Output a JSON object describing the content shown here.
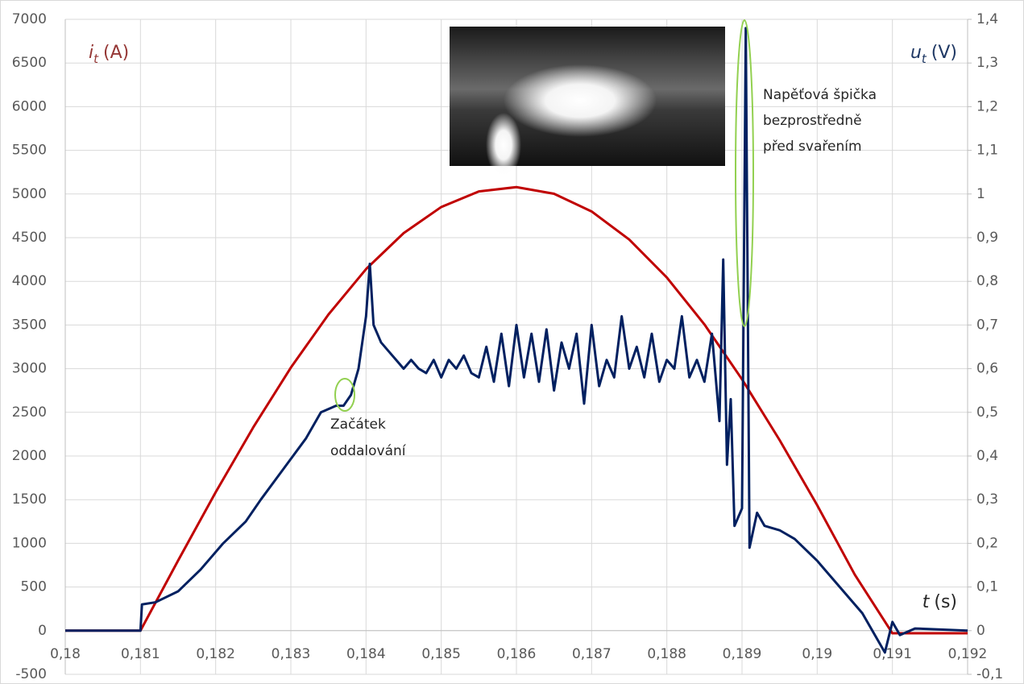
{
  "chart_data": {
    "type": "line",
    "y_label": {
      "symbol": "i",
      "subscript": "t",
      "unit": "(A)"
    },
    "y2_label": {
      "symbol": "u",
      "subscript": "t",
      "unit": "(V)"
    },
    "x_label": {
      "symbol": "t",
      "unit": "(s)"
    },
    "annotations": [
      {
        "lines": [
          "Začátek",
          "oddalování"
        ]
      },
      {
        "lines": [
          "Napěťová špička",
          "bezprostředně",
          "před svařením"
        ]
      }
    ],
    "xlim": [
      0.18,
      0.192
    ],
    "xticks": [
      {
        "value": 0.18,
        "label": "0,18"
      },
      {
        "value": 0.181,
        "label": "0,181"
      },
      {
        "value": 0.182,
        "label": "0,182"
      },
      {
        "value": 0.183,
        "label": "0,183"
      },
      {
        "value": 0.184,
        "label": "0,184"
      },
      {
        "value": 0.185,
        "label": "0,185"
      },
      {
        "value": 0.186,
        "label": "0,186"
      },
      {
        "value": 0.187,
        "label": "0,187"
      },
      {
        "value": 0.188,
        "label": "0,188"
      },
      {
        "value": 0.189,
        "label": "0,189"
      },
      {
        "value": 0.19,
        "label": "0,19"
      },
      {
        "value": 0.191,
        "label": "0,191"
      },
      {
        "value": 0.192,
        "label": "0,192"
      }
    ],
    "ylim": [
      -500,
      7000
    ],
    "yticks": [
      -500,
      0,
      500,
      1000,
      1500,
      2000,
      2500,
      3000,
      3500,
      4000,
      4500,
      5000,
      5500,
      6000,
      6500,
      7000
    ],
    "y2lim": [
      -0.1,
      1.4
    ],
    "y2ticks": [
      {
        "value": -0.1,
        "label": "-0,1"
      },
      0,
      {
        "value": 0.1,
        "label": "0,1"
      },
      {
        "value": 0.2,
        "label": "0,2"
      },
      {
        "value": 0.3,
        "label": "0,3"
      },
      {
        "value": 0.4,
        "label": "0,4"
      },
      {
        "value": 0.5,
        "label": "0,5"
      },
      {
        "value": 0.6,
        "label": "0,6"
      },
      {
        "value": 0.7,
        "label": "0,7"
      },
      {
        "value": 0.8,
        "label": "0,8"
      },
      {
        "value": 0.9,
        "label": "0,9"
      },
      1,
      {
        "value": 1.1,
        "label": "1,1"
      },
      {
        "value": 1.2,
        "label": "1,2"
      },
      {
        "value": 1.3,
        "label": "1,3"
      },
      {
        "value": 1.4,
        "label": "1,4"
      }
    ],
    "grid": true,
    "series": [
      {
        "color": "#c00000",
        "x": [
          0.18,
          0.1805,
          0.181,
          0.1815,
          0.182,
          0.1825,
          0.183,
          0.1835,
          0.184,
          0.1845,
          0.185,
          0.1855,
          0.186,
          0.1865,
          0.187,
          0.1875,
          0.188,
          0.1885,
          0.189,
          0.1895,
          0.19,
          0.1905,
          0.191,
          0.1915,
          0.192
        ],
        "values": [
          0,
          0,
          0,
          802,
          1585,
          2328,
          3012,
          3620,
          4140,
          4552,
          4851,
          5029,
          5079,
          5003,
          4800,
          4479,
          4044,
          3507,
          2878,
          2182,
          1436,
          641,
          -30,
          -30,
          -30
        ]
      },
      {
        "color": "#002060",
        "axis": "y2",
        "x": [
          0.18,
          0.181,
          0.18102,
          0.1812,
          0.1815,
          0.1818,
          0.1821,
          0.1824,
          0.1826,
          0.1829,
          0.1832,
          0.1834,
          0.1836,
          0.1837,
          0.1838,
          0.1839,
          0.184,
          0.18405,
          0.1841,
          0.1842,
          0.1843,
          0.1844,
          0.1845,
          0.1846,
          0.1847,
          0.1848,
          0.1849,
          0.185,
          0.1851,
          0.1852,
          0.1853,
          0.1854,
          0.1855,
          0.1856,
          0.1857,
          0.1858,
          0.1859,
          0.186,
          0.1861,
          0.1862,
          0.1863,
          0.1864,
          0.1865,
          0.1866,
          0.1867,
          0.1868,
          0.1869,
          0.187,
          0.1871,
          0.1872,
          0.1873,
          0.1874,
          0.1875,
          0.1876,
          0.1877,
          0.1878,
          0.1879,
          0.188,
          0.1881,
          0.1882,
          0.1883,
          0.1884,
          0.1885,
          0.1886,
          0.1887,
          0.18875,
          0.1888,
          0.18885,
          0.1889,
          0.189,
          0.18905,
          0.1891,
          0.1892,
          0.1893,
          0.1895,
          0.1897,
          0.19,
          0.1903,
          0.1906,
          0.1909,
          0.191,
          0.1911,
          0.1913,
          0.192
        ],
        "values": [
          0,
          0,
          0.06,
          0.065,
          0.09,
          0.14,
          0.2,
          0.25,
          0.3,
          0.37,
          0.44,
          0.5,
          0.515,
          0.515,
          0.54,
          0.6,
          0.72,
          0.84,
          0.7,
          0.66,
          0.64,
          0.62,
          0.6,
          0.62,
          0.6,
          0.59,
          0.62,
          0.58,
          0.62,
          0.6,
          0.63,
          0.59,
          0.58,
          0.65,
          0.57,
          0.68,
          0.56,
          0.7,
          0.58,
          0.68,
          0.57,
          0.69,
          0.55,
          0.66,
          0.6,
          0.68,
          0.52,
          0.7,
          0.56,
          0.62,
          0.58,
          0.72,
          0.6,
          0.65,
          0.58,
          0.68,
          0.57,
          0.62,
          0.6,
          0.72,
          0.58,
          0.62,
          0.57,
          0.68,
          0.48,
          0.85,
          0.38,
          0.53,
          0.24,
          0.28,
          1.38,
          0.19,
          0.27,
          0.24,
          0.23,
          0.21,
          0.16,
          0.1,
          0.04,
          -0.05,
          0.02,
          -0.01,
          0.005,
          0
        ]
      }
    ]
  }
}
